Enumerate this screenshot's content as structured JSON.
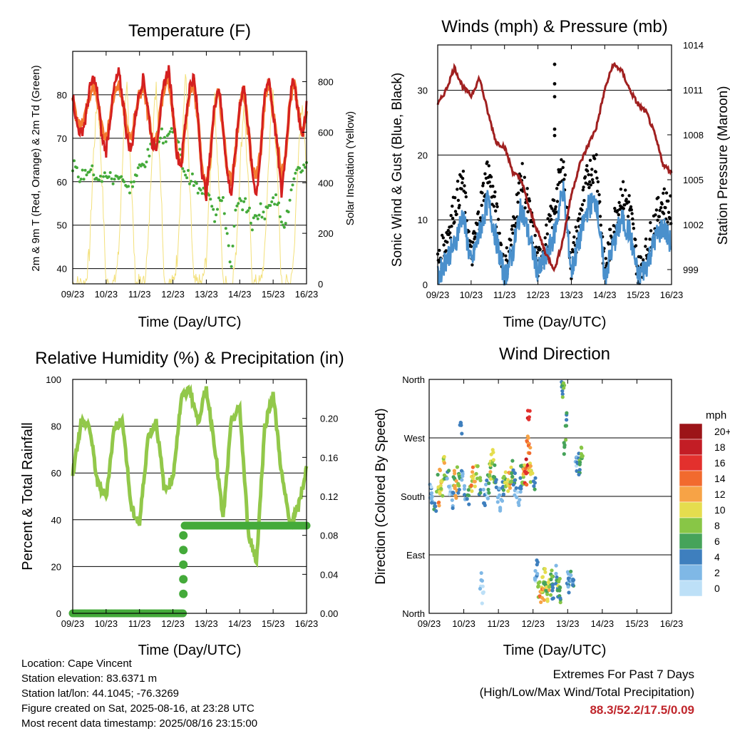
{
  "info": {
    "location": "Location: Cape Vincent",
    "elevation": "Station elevation: 83.6371 m",
    "latlon": "Station lat/lon: 44.1045; -76.3269",
    "created": "Figure created on Sat, 2025-08-16, at 23:28 UTC",
    "recent": "Most recent data timestamp: 2025/08/16 23:15:00"
  },
  "extremes": {
    "title": "Extremes For Past 7 Days",
    "subtitle": "(High/Low/Max Wind/Total Precipitation)",
    "values": "88.3/52.2/17.5/0.09"
  },
  "colors": {
    "t2m": "#d42020",
    "t9m": "#f47a30",
    "td": "#44aa3a",
    "solar": "#f3e07a",
    "sonic": "#4a90cc",
    "gust": "#000000",
    "pressure": "#a02020",
    "rh": "#92c84a",
    "precip": "#44aa3a"
  },
  "chart_data": [
    {
      "type": "line",
      "title": "Temperature (F)",
      "xlabel": "Time (Day/UTC)",
      "ylabel": "2m & 9m T (Red, Orange) & 2m Td (Green)",
      "ylabel_right": "Solar Insolation (Yellow)",
      "x_ticks": [
        "09/23",
        "10/23",
        "11/23",
        "12/23",
        "13/23",
        "14/23",
        "15/23",
        "16/23"
      ],
      "y_ticks": [
        "40",
        "50",
        "60",
        "70",
        "80"
      ],
      "y_right_ticks": [
        "0",
        "200",
        "400",
        "600",
        "800"
      ],
      "ylim": [
        36.5,
        90
      ],
      "y_right_lim": [
        0,
        920
      ],
      "grid": true,
      "x_hours": [
        0,
        3,
        6,
        9,
        12,
        15,
        18,
        21,
        24,
        27,
        30,
        33,
        36,
        39,
        42,
        45,
        48,
        51,
        54,
        57,
        60,
        63,
        66,
        69,
        72,
        75,
        78,
        81,
        84,
        87,
        90,
        93,
        96,
        99,
        102,
        105,
        108,
        111,
        114,
        117,
        120,
        123,
        126,
        129,
        132,
        135,
        138,
        141,
        144,
        147,
        150,
        153,
        156,
        159,
        162,
        165,
        168
      ],
      "series": [
        {
          "name": "2m T",
          "values": [
            80,
            73,
            71,
            74,
            81,
            84,
            80,
            70,
            67,
            75,
            82,
            85,
            79,
            70,
            67,
            75,
            81,
            84,
            77,
            69,
            68,
            76,
            83,
            86,
            76,
            66,
            64,
            74,
            82,
            84,
            75,
            62,
            57,
            67,
            78,
            82,
            73,
            62,
            57,
            67,
            78,
            82,
            73,
            62,
            57,
            67,
            80,
            84,
            76,
            68,
            57,
            67,
            79,
            84,
            76,
            70,
            78
          ]
        },
        {
          "name": "9m T",
          "values": [
            79,
            74,
            73,
            75,
            80,
            82,
            79,
            72,
            70,
            75,
            81,
            83,
            78,
            72,
            69,
            76,
            80,
            82,
            76,
            70,
            69,
            76,
            82,
            84,
            75,
            66,
            64,
            73,
            81,
            83,
            74,
            62,
            58,
            67,
            77,
            81,
            72,
            63,
            60,
            67,
            78,
            81,
            72,
            63,
            61,
            67,
            79,
            83,
            76,
            69,
            61,
            67,
            78,
            83,
            76,
            70,
            77
          ]
        },
        {
          "name": "2m Td",
          "values": [
            64,
            62,
            61,
            62,
            63,
            62,
            61,
            60,
            62,
            61,
            60,
            62,
            61,
            58,
            59,
            61,
            63,
            64,
            66,
            68,
            70,
            71,
            70,
            71,
            72,
            70,
            65,
            62,
            61,
            60,
            58,
            57,
            59,
            57,
            52,
            56,
            55,
            48,
            40,
            53,
            55,
            55,
            54,
            50,
            52,
            54,
            52,
            55,
            57,
            55,
            52,
            50,
            56,
            60,
            62,
            63,
            65
          ]
        },
        {
          "name": "Solar",
          "values": [
            0,
            0,
            0,
            0,
            120,
            520,
            760,
            420,
            0,
            0,
            0,
            120,
            520,
            780,
            430,
            0,
            0,
            0,
            130,
            540,
            800,
            440,
            0,
            0,
            0,
            100,
            420,
            860,
            380,
            0,
            0,
            0,
            100,
            440,
            720,
            400,
            0,
            0,
            0,
            90,
            440,
            720,
            400,
            0,
            0,
            0,
            120,
            520,
            760,
            420,
            0,
            0,
            0,
            120,
            520,
            740,
            400
          ]
        }
      ]
    },
    {
      "type": "line",
      "title": "Winds (mph) & Pressure (mb)",
      "xlabel": "Time (Day/UTC)",
      "ylabel": "Sonic Wind & Gust (Blue, Black)",
      "ylabel_right": "Station Pressure (Maroon)",
      "x_ticks": [
        "09/23",
        "10/23",
        "11/23",
        "12/23",
        "13/23",
        "14/23",
        "15/23",
        "16/23"
      ],
      "y_ticks": [
        "0",
        "10",
        "20",
        "30"
      ],
      "y_right_ticks": [
        "999",
        "1002",
        "1005",
        "1008",
        "1011",
        "1014"
      ],
      "ylim": [
        0,
        37
      ],
      "y_right_lim": [
        998,
        1014
      ],
      "grid": true,
      "x_hours": [
        0,
        6,
        12,
        18,
        24,
        30,
        36,
        42,
        48,
        54,
        60,
        66,
        72,
        78,
        84,
        90,
        96,
        102,
        108,
        114,
        120,
        126,
        132,
        138,
        144,
        150,
        156,
        162,
        168
      ],
      "series": [
        {
          "name": "Sonic",
          "values": [
            1,
            4,
            6,
            11,
            3,
            8,
            13,
            7,
            1,
            5,
            12,
            7,
            2,
            4,
            8,
            15,
            2,
            7,
            12,
            13,
            1,
            6,
            10,
            8,
            1,
            3,
            7,
            9,
            6
          ]
        },
        {
          "name": "Gust",
          "values": [
            3,
            7,
            12,
            16,
            4,
            11,
            18,
            11,
            2,
            8,
            17,
            11,
            3,
            7,
            12,
            19,
            3,
            10,
            17,
            19,
            2,
            9,
            14,
            12,
            2,
            5,
            10,
            13,
            11
          ]
        },
        {
          "name": "Pressure",
          "values": [
            1010,
            1011,
            1012.5,
            1011.2,
            1010.6,
            1011.8,
            1009.5,
            1007.5,
            1007.2,
            1005.5,
            1005,
            1003,
            1001.5,
            1000,
            999,
            1001,
            1004,
            1006,
            1007.3,
            1008.5,
            1011,
            1012.7,
            1012.3,
            1011,
            1010,
            1009.5,
            1008,
            1006,
            1005.5
          ]
        }
      ]
    },
    {
      "type": "line",
      "title": "Relative Humidity (%) & Precipitation (in)",
      "xlabel": "Time (Day/UTC)",
      "ylabel": "Percent & Total Rainfall",
      "x_ticks": [
        "09/23",
        "10/23",
        "11/23",
        "12/23",
        "13/23",
        "14/23",
        "15/23",
        "16/23"
      ],
      "y_ticks": [
        "0",
        "20",
        "40",
        "60",
        "80",
        "100"
      ],
      "y_right_ticks": [
        "0.00",
        "0.04",
        "0.08",
        "0.12",
        "0.16",
        "0.20"
      ],
      "ylim": [
        0,
        100
      ],
      "y_right_lim": [
        0,
        0.24
      ],
      "grid": true,
      "x_hours": [
        0,
        6,
        12,
        18,
        24,
        30,
        36,
        42,
        48,
        54,
        60,
        66,
        72,
        78,
        84,
        90,
        96,
        102,
        108,
        114,
        120,
        126,
        132,
        138,
        144,
        150,
        156,
        162,
        168
      ],
      "series": [
        {
          "name": "RH",
          "values": [
            60,
            82,
            80,
            55,
            50,
            80,
            82,
            45,
            38,
            75,
            82,
            52,
            58,
            92,
            96,
            82,
            96,
            72,
            40,
            82,
            88,
            35,
            22,
            80,
            94,
            60,
            38,
            45,
            62
          ]
        },
        {
          "name": "Precip",
          "values": [
            0,
            0,
            0,
            0,
            0,
            0,
            0,
            0,
            0,
            0,
            0,
            0,
            0,
            0.09,
            0.09,
            0.09,
            0.09,
            0.09,
            0.09,
            0.09,
            0.09,
            0.09,
            0.09,
            0.09,
            0.09,
            0.09,
            0.09,
            0.09,
            0.09
          ]
        }
      ]
    },
    {
      "type": "scatter",
      "title": "Wind Direction",
      "xlabel": "Time (Day/UTC)",
      "ylabel": "Direction (Colored By Speed)",
      "x_ticks": [
        "09/23",
        "10/23",
        "11/23",
        "12/23",
        "13/23",
        "14/23",
        "15/23",
        "16/23"
      ],
      "y_ticks": [
        "North",
        "East",
        "South",
        "West",
        "North"
      ],
      "ylim": [
        0,
        360
      ],
      "colorbar_title": "mph",
      "colorbar_labels": [
        "20+",
        "18",
        "16",
        "14",
        "12",
        "10",
        "8",
        "6",
        "4",
        "2",
        "0"
      ],
      "colorbar_colors": [
        "#9c1418",
        "#c31d25",
        "#e3302d",
        "#f26a2e",
        "#f7a346",
        "#e5dd4e",
        "#88c646",
        "#46a35a",
        "#3e7fbe",
        "#7fb8e6",
        "#bde0f7"
      ],
      "points": [
        [
          1,
          190,
          3
        ],
        [
          2,
          180,
          2
        ],
        [
          4,
          170,
          5
        ],
        [
          6,
          200,
          8
        ],
        [
          7,
          180,
          12
        ],
        [
          8,
          210,
          11
        ],
        [
          9,
          195,
          9
        ],
        [
          10,
          230,
          10
        ],
        [
          11,
          215,
          7
        ],
        [
          13,
          205,
          4
        ],
        [
          14,
          185,
          2
        ],
        [
          16,
          175,
          3
        ],
        [
          17,
          195,
          6
        ],
        [
          18,
          205,
          11
        ],
        [
          19,
          190,
          12
        ],
        [
          20,
          210,
          8
        ],
        [
          21,
          200,
          6
        ],
        [
          22,
          285,
          4
        ],
        [
          23,
          215,
          3
        ],
        [
          25,
          190,
          2
        ],
        [
          27,
          180,
          5
        ],
        [
          29,
          200,
          9
        ],
        [
          30,
          210,
          13
        ],
        [
          31,
          205,
          11
        ],
        [
          33,
          220,
          8
        ],
        [
          35,
          195,
          6
        ],
        [
          36,
          50,
          2
        ],
        [
          37,
          30,
          1
        ],
        [
          38,
          180,
          4
        ],
        [
          40,
          190,
          2
        ],
        [
          41,
          200,
          6
        ],
        [
          42,
          215,
          8
        ],
        [
          43,
          230,
          10
        ],
        [
          44,
          240,
          9
        ],
        [
          45,
          215,
          7
        ],
        [
          46,
          195,
          5
        ],
        [
          48,
          180,
          3
        ],
        [
          50,
          170,
          2
        ],
        [
          51,
          190,
          4
        ],
        [
          52,
          200,
          6
        ],
        [
          53,
          210,
          9
        ],
        [
          55,
          195,
          11
        ],
        [
          56,
          205,
          12
        ],
        [
          57,
          215,
          10
        ],
        [
          58,
          225,
          8
        ],
        [
          59,
          210,
          5
        ],
        [
          60,
          190,
          3
        ],
        [
          62,
          180,
          2
        ],
        [
          63,
          200,
          4
        ],
        [
          64,
          215,
          6
        ],
        [
          65,
          205,
          8
        ],
        [
          66,
          220,
          12
        ],
        [
          67,
          210,
          14
        ],
        [
          68,
          230,
          16
        ],
        [
          68.5,
          270,
          14
        ],
        [
          69,
          300,
          16
        ],
        [
          69.5,
          255,
          13
        ],
        [
          70,
          220,
          10
        ],
        [
          71,
          215,
          8
        ],
        [
          73,
          200,
          4
        ],
        [
          74,
          60,
          2
        ],
        [
          75,
          70,
          4
        ],
        [
          76,
          40,
          8
        ],
        [
          77,
          30,
          12
        ],
        [
          78,
          45,
          10
        ],
        [
          79,
          35,
          13
        ],
        [
          80,
          55,
          8
        ],
        [
          81,
          40,
          6
        ],
        [
          82,
          30,
          9
        ],
        [
          83,
          50,
          11
        ],
        [
          84,
          40,
          8
        ],
        [
          85,
          55,
          6
        ],
        [
          86,
          35,
          4
        ],
        [
          88,
          60,
          3
        ],
        [
          89,
          40,
          5
        ],
        [
          90,
          50,
          8
        ],
        [
          91,
          30,
          6
        ],
        [
          92,
          350,
          4
        ],
        [
          93,
          340,
          8
        ],
        [
          94,
          260,
          7
        ],
        [
          95,
          300,
          5
        ],
        [
          96,
          55,
          4
        ],
        [
          97,
          45,
          3
        ],
        [
          98,
          60,
          5
        ],
        [
          99,
          50,
          2
        ],
        [
          100,
          40,
          4
        ],
        [
          102,
          230,
          2
        ],
        [
          103,
          245,
          3
        ],
        [
          104,
          225,
          5
        ],
        [
          105,
          240,
          7
        ],
        [
          106,
          250,
          8
        ]
      ]
    }
  ]
}
